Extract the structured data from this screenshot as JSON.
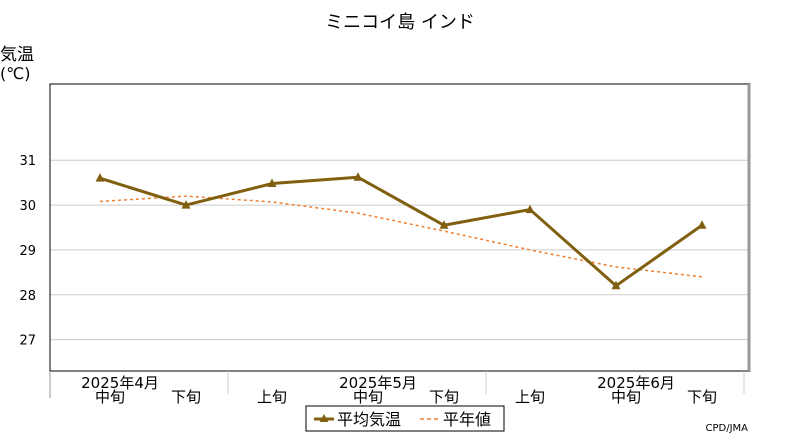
{
  "chart_data": {
    "type": "line",
    "title": "ミニコイ島 インド",
    "ylabel_line1": "気温",
    "ylabel_line2": "(℃)",
    "ylim": [
      26.3,
      32.7
    ],
    "yticks": [
      27,
      28,
      29,
      30,
      31
    ],
    "grid": true,
    "categories": [
      "中旬",
      "下旬",
      "上旬",
      "中旬",
      "下旬",
      "上旬",
      "中旬",
      "下旬"
    ],
    "month_labels": [
      "2025年4月",
      "2025年5月",
      "2025年6月"
    ],
    "series": [
      {
        "name": "平均気温",
        "style": "solid-triangle-markers",
        "color": "#806010",
        "values": [
          30.6,
          30.0,
          30.48,
          30.62,
          29.55,
          29.9,
          28.2,
          29.55
        ]
      },
      {
        "name": "平年値",
        "style": "dashed",
        "color": "#f08030",
        "values": [
          30.08,
          30.2,
          30.07,
          29.82,
          29.42,
          29.0,
          28.62,
          28.4
        ]
      }
    ],
    "legend_position": "bottom-center",
    "credit": "CPD/JMA"
  }
}
